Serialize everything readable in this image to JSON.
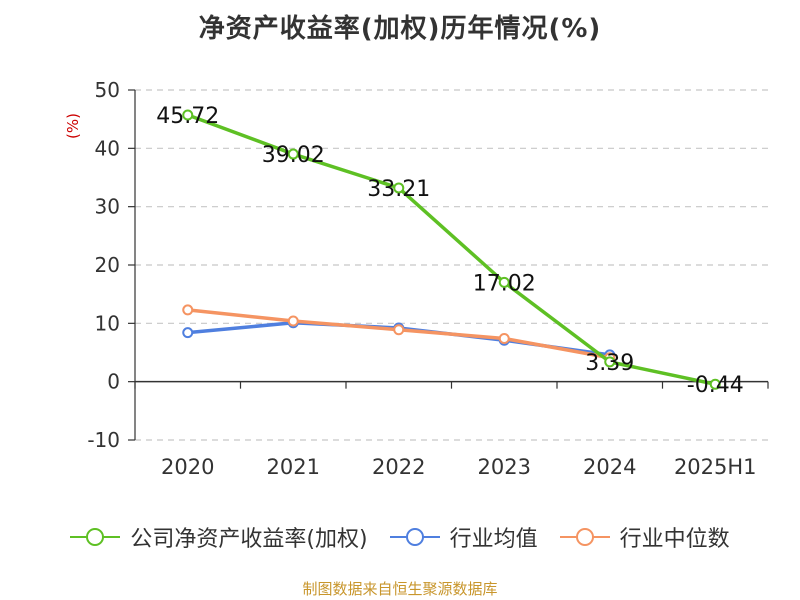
{
  "chart_data": {
    "type": "line",
    "title": "净资产收益率(加权)历年情况(%)",
    "ylabel": "(%)",
    "categories": [
      "2020",
      "2021",
      "2022",
      "2023",
      "2024",
      "2025H1"
    ],
    "yticks": [
      "50",
      "40",
      "30",
      "20",
      "10",
      "0",
      "-10"
    ],
    "ylim": [
      -10,
      50
    ],
    "grid": true,
    "legend_position": "bottom",
    "series": [
      {
        "name": "公司净资产收益率(加权)",
        "color": "#5ec024",
        "values": [
          45.72,
          39.02,
          33.21,
          17.02,
          3.39,
          -0.44
        ],
        "labels": [
          "45.72",
          "39.02",
          "33.21",
          "17.02",
          "3.39",
          "-0.44"
        ]
      },
      {
        "name": "行业均值",
        "color": "#4f7fdf",
        "values": [
          8.4,
          10.1,
          9.2,
          7.1,
          4.6,
          null
        ]
      },
      {
        "name": "行业中位数",
        "color": "#f59462",
        "values": [
          12.3,
          10.4,
          8.9,
          7.4,
          4.1,
          null
        ]
      }
    ]
  },
  "source": "制图数据来自恒生聚源数据库"
}
